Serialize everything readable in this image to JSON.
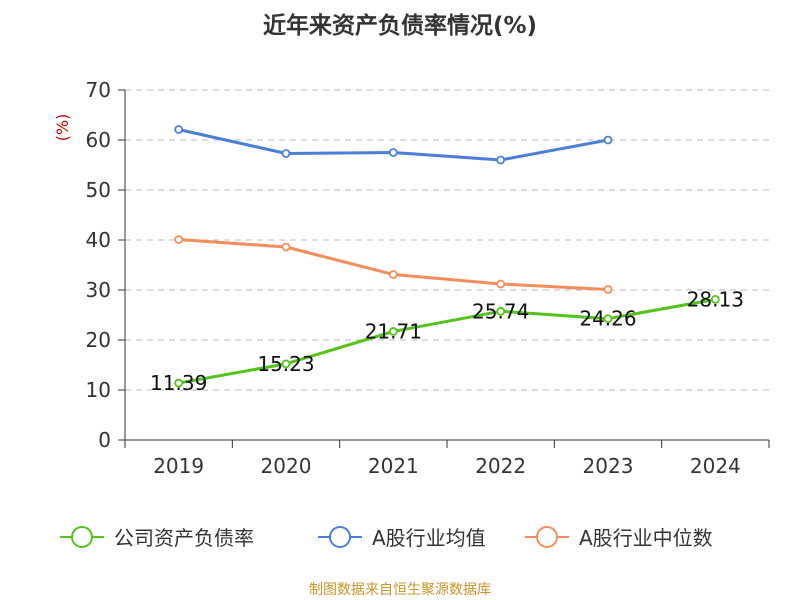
{
  "chart_data": {
    "type": "line",
    "title": "近年来资产负债率情况(%)",
    "ylabel": "(%)",
    "xlabel": "",
    "categories": [
      "2019",
      "2020",
      "2021",
      "2022",
      "2023",
      "2024"
    ],
    "ylim": [
      0,
      70
    ],
    "yticks": [
      0,
      10,
      20,
      30,
      40,
      50,
      60,
      70
    ],
    "grid": "horizontal dashed",
    "legend_position": "bottom",
    "series": [
      {
        "name": "公司资产负债率",
        "color": "#52c41a",
        "values": [
          11.39,
          15.23,
          21.71,
          25.74,
          24.26,
          28.13
        ],
        "labels": [
          "11.39",
          "15.23",
          "21.71",
          "25.74",
          "24.26",
          "28.13"
        ]
      },
      {
        "name": "A股行业均值",
        "color": "#4a7fd9",
        "values": [
          62.1,
          57.3,
          57.5,
          56.0,
          60.0,
          null
        ]
      },
      {
        "name": "A股行业中位数",
        "color": "#f58c5a",
        "values": [
          40.1,
          38.6,
          33.1,
          31.2,
          30.1,
          null
        ]
      }
    ]
  },
  "source": "制图数据来自恒生聚源数据库",
  "colors": {
    "axis": "#333333",
    "grid": "#bbbbbb",
    "ylabel": "#cc0000",
    "source": "#c8952b"
  }
}
